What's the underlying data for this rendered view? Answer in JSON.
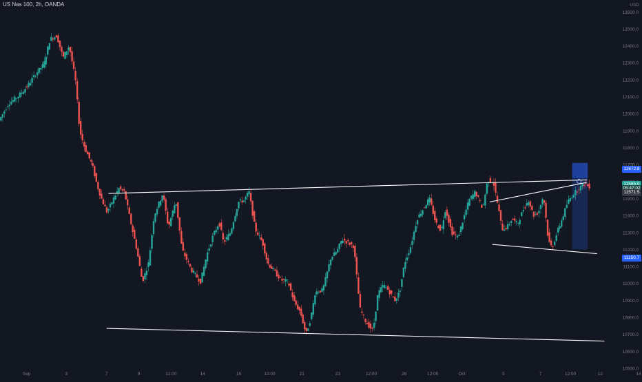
{
  "title": "US Nas 100, 2h, OANDA",
  "currency": "USD",
  "colors": {
    "background": "#131722",
    "up": "#26a69a",
    "down": "#ef5350",
    "trendline": "#ffffff",
    "axis_text": "#787b86",
    "position_box": "#2962ff"
  },
  "price_tags": [
    {
      "label": "11672.8",
      "value": 11672.8,
      "color": "#2962ff"
    },
    {
      "label": "11585.0",
      "value": 11585.0,
      "color": "#26a69a"
    },
    {
      "label": "05:47:02",
      "value": 11560.0,
      "color": "#1e4e4a"
    },
    {
      "label": "11571.5",
      "value": 11535.0,
      "color": "#363a45"
    },
    {
      "label": "11150.7",
      "value": 11150.7,
      "color": "#2962ff"
    }
  ],
  "chart_data": {
    "type": "candlestick",
    "title": "US Nas 100, 2h, OANDA",
    "y_tick_labels": [
      "12600.0",
      "12500.0",
      "12400.0",
      "12300.0",
      "12200.0",
      "12100.0",
      "12000.0",
      "11900.0",
      "11800.0",
      "11700.0",
      "11600.0",
      "11500.0",
      "11400.0",
      "11300.0",
      "11200.0",
      "11100.0",
      "11000.0",
      "10900.0",
      "10800.0",
      "10700.0",
      "10600.0",
      "10500.0"
    ],
    "y_ticks": [
      12600,
      12500,
      12400,
      12300,
      12200,
      12100,
      12000,
      11900,
      11800,
      11700,
      11600,
      11500,
      11400,
      11300,
      11200,
      11100,
      11000,
      10900,
      10800,
      10700,
      10600,
      10500
    ],
    "ylim": [
      10500,
      12670
    ],
    "xlim": [
      0,
      100
    ],
    "x_tick_labels": [
      {
        "label": "Sep",
        "x": 4.3
      },
      {
        "label": "3",
        "x": 10.7
      },
      {
        "label": "7",
        "x": 17.2
      },
      {
        "label": "9",
        "x": 22.4
      },
      {
        "label": "12:00",
        "x": 27.6
      },
      {
        "label": "14",
        "x": 32.7
      },
      {
        "label": "16",
        "x": 38.5
      },
      {
        "label": "12:00",
        "x": 43.5
      },
      {
        "label": "21",
        "x": 48.7
      },
      {
        "label": "23",
        "x": 54.5
      },
      {
        "label": "12:00",
        "x": 59.9
      },
      {
        "label": "28",
        "x": 65.2
      },
      {
        "label": "12:00",
        "x": 69.8
      },
      {
        "label": "Oct",
        "x": 74.5
      },
      {
        "label": "5",
        "x": 81.2
      },
      {
        "label": "7",
        "x": 87.2
      },
      {
        "label": "12:00",
        "x": 92.0
      },
      {
        "label": "12",
        "x": 96.8
      },
      {
        "label": "14",
        "x": 103.0
      }
    ],
    "trendlines": [
      {
        "name": "upper-range-line",
        "x1": 17.5,
        "y1": 11530,
        "x2": 94.7,
        "y2": 11610
      },
      {
        "name": "lower-range-line",
        "x1": 17.2,
        "y1": 10735,
        "x2": 97.5,
        "y2": 10660
      },
      {
        "name": "wedge-upper-line",
        "x1": 79.0,
        "y1": 11480,
        "x2": 94.6,
        "y2": 11595
      },
      {
        "name": "wedge-lower-line",
        "x1": 79.4,
        "y1": 11230,
        "x2": 96.3,
        "y2": 11175
      }
    ],
    "position_box": {
      "x1": 92.3,
      "x2": 94.8,
      "top": 11710,
      "mid": 11620,
      "bottom": 11200
    },
    "marker": {
      "x": 93.4,
      "y": 11601
    },
    "path_knots": [
      [
        0,
        11960
      ],
      [
        1.5,
        12060
      ],
      [
        3,
        12100
      ],
      [
        4.5,
        12160
      ],
      [
        6,
        12240
      ],
      [
        7.2,
        12290
      ],
      [
        8.2,
        12440
      ],
      [
        9.3,
        12460
      ],
      [
        10.3,
        12330
      ],
      [
        11.3,
        12400
      ],
      [
        12.3,
        12200
      ],
      [
        13,
        11900
      ],
      [
        13.8,
        11800
      ],
      [
        15,
        11700
      ],
      [
        15.8,
        11580
      ],
      [
        16.5,
        11500
      ],
      [
        17.4,
        11420
      ],
      [
        18.2,
        11480
      ],
      [
        19.3,
        11560
      ],
      [
        20.2,
        11540
      ],
      [
        21,
        11400
      ],
      [
        22.2,
        11200
      ],
      [
        23.1,
        11010
      ],
      [
        24.1,
        11120
      ],
      [
        25,
        11400
      ],
      [
        26.4,
        11530
      ],
      [
        27.3,
        11330
      ],
      [
        28.5,
        11490
      ],
      [
        29.5,
        11200
      ],
      [
        31,
        11080
      ],
      [
        32.5,
        11010
      ],
      [
        33.5,
        11170
      ],
      [
        34.5,
        11280
      ],
      [
        35.5,
        11360
      ],
      [
        36.2,
        11240
      ],
      [
        37.3,
        11300
      ],
      [
        38.6,
        11480
      ],
      [
        39.5,
        11490
      ],
      [
        40.3,
        11540
      ],
      [
        41.3,
        11320
      ],
      [
        42.5,
        11240
      ],
      [
        43.3,
        11120
      ],
      [
        44.2,
        11080
      ],
      [
        45.5,
        11020
      ],
      [
        46.6,
        11010
      ],
      [
        47.6,
        10890
      ],
      [
        48.6,
        10830
      ],
      [
        49.5,
        10700
      ],
      [
        50.3,
        10800
      ],
      [
        51,
        10950
      ],
      [
        52.2,
        10960
      ],
      [
        53.5,
        11150
      ],
      [
        54.5,
        11190
      ],
      [
        55.3,
        11260
      ],
      [
        56.3,
        11240
      ],
      [
        57.2,
        11220
      ],
      [
        58.2,
        10850
      ],
      [
        59.2,
        10770
      ],
      [
        60.3,
        10720
      ],
      [
        61.1,
        10940
      ],
      [
        62,
        10990
      ],
      [
        62.8,
        10960
      ],
      [
        63.8,
        10900
      ],
      [
        64.6,
        10950
      ],
      [
        65.4,
        11120
      ],
      [
        66.4,
        11220
      ],
      [
        67.4,
        11380
      ],
      [
        68.4,
        11440
      ],
      [
        69.4,
        11500
      ],
      [
        70.4,
        11360
      ],
      [
        71.3,
        11310
      ],
      [
        72,
        11440
      ],
      [
        73,
        11300
      ],
      [
        74,
        11270
      ],
      [
        74.8,
        11370
      ],
      [
        75.8,
        11490
      ],
      [
        76.8,
        11540
      ],
      [
        78,
        11440
      ],
      [
        78.8,
        11610
      ],
      [
        79.7,
        11600
      ],
      [
        80.5,
        11450
      ],
      [
        81.1,
        11320
      ],
      [
        81.9,
        11330
      ],
      [
        82.7,
        11380
      ],
      [
        83.6,
        11350
      ],
      [
        84.6,
        11440
      ],
      [
        85.4,
        11490
      ],
      [
        86.2,
        11400
      ],
      [
        87,
        11420
      ],
      [
        87.8,
        11520
      ],
      [
        88.6,
        11250
      ],
      [
        89.2,
        11210
      ],
      [
        90,
        11300
      ],
      [
        90.9,
        11390
      ],
      [
        91.7,
        11480
      ],
      [
        92.7,
        11530
      ],
      [
        93.5,
        11560
      ],
      [
        94.5,
        11590
      ],
      [
        95,
        11572
      ]
    ]
  }
}
